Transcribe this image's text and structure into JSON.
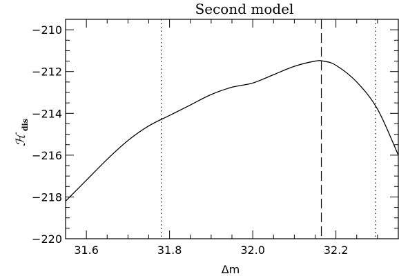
{
  "chart_data": {
    "type": "line",
    "title": "Second model",
    "xlabel": "Δm",
    "ylabel": "ℋ",
    "ylabel_sub": "dis",
    "xlim": [
      31.55,
      32.35
    ],
    "ylim": [
      -220,
      -209.5
    ],
    "x_ticks": [
      31.6,
      31.8,
      32.0,
      32.2
    ],
    "x_tick_labels": [
      "31.6",
      "31.8",
      "32.0",
      "32.2"
    ],
    "y_ticks": [
      -220,
      -218,
      -216,
      -214,
      -212,
      -210
    ],
    "y_tick_labels": [
      "−220",
      "−218",
      "−216",
      "−214",
      "−212",
      "−210"
    ],
    "grid": false,
    "series": [
      {
        "style": "solid",
        "x": [
          31.55,
          31.6,
          31.65,
          31.7,
          31.75,
          31.8,
          31.85,
          31.9,
          31.95,
          32.0,
          32.05,
          32.1,
          32.15,
          32.17,
          32.2,
          32.25,
          32.3,
          32.35
        ],
        "y": [
          -218.2,
          -217.2,
          -216.2,
          -215.3,
          -214.6,
          -214.1,
          -213.6,
          -213.1,
          -212.75,
          -212.55,
          -212.15,
          -211.75,
          -211.5,
          -211.5,
          -211.7,
          -212.5,
          -213.8,
          -216.0
        ]
      }
    ],
    "vlines": [
      {
        "x": 31.78,
        "style": "dotted"
      },
      {
        "x": 32.165,
        "style": "dashed"
      },
      {
        "x": 32.295,
        "style": "dotted"
      }
    ]
  }
}
